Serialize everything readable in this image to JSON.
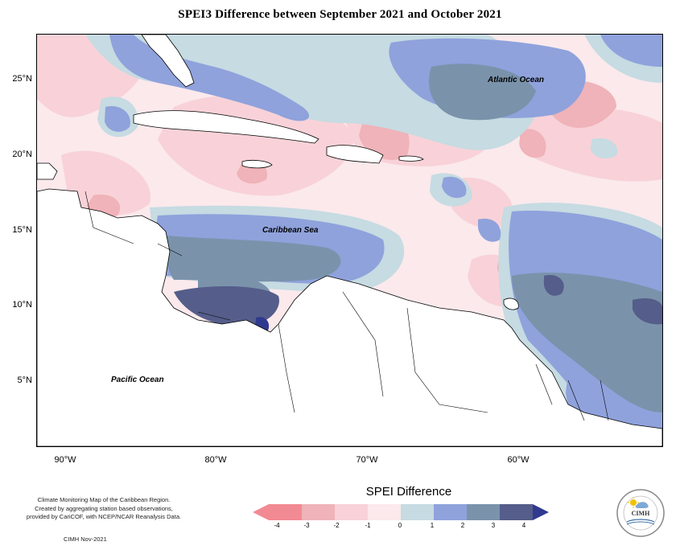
{
  "title": "SPEI3 Difference between September 2021 and October 2021",
  "axes": {
    "lat_labels": [
      "25°N",
      "20°N",
      "15°N",
      "10°N",
      "5°N"
    ],
    "lon_labels": [
      "90°W",
      "80°W",
      "70°W",
      "60°W"
    ]
  },
  "ocean_labels": {
    "atlantic": "Atlantic Ocean",
    "caribbean": "Caribbean Sea",
    "pacific": "Pacific Ocean"
  },
  "footer": {
    "note_line1": "Climate Monitoring Map of the Caribbean Region.",
    "note_line2": "Created by aggregating station based observations,",
    "note_line3": "provided by CariCOF, with NCEP/NCAR Reanalysis Data.",
    "credit": "CIMH Nov-2021"
  },
  "legend": {
    "title": "SPEI Difference",
    "ticks": [
      "-4",
      "-3",
      "-2",
      "-1",
      "0",
      "1",
      "2",
      "3",
      "4"
    ],
    "colors": [
      "#f28a93",
      "#efb3b9",
      "#f8d2d8",
      "#fbe9ec",
      "#c6dbe2",
      "#8fa2dc",
      "#7a93ab",
      "#555d8a",
      "#2f3a8f"
    ]
  },
  "logo": {
    "text": "CIMH",
    "icon": "sun-icon"
  }
}
